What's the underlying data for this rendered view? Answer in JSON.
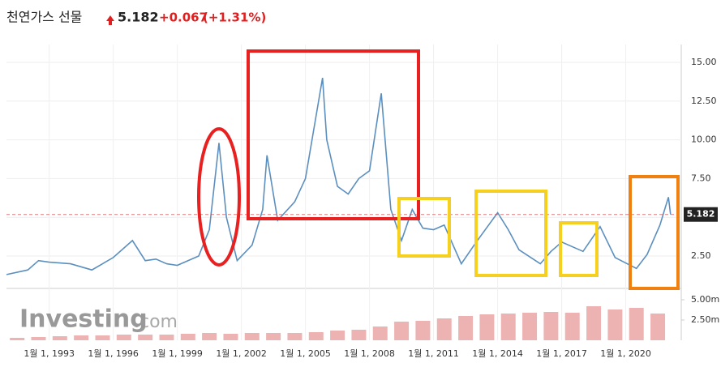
{
  "chart_data": {
    "type": "line",
    "title": "천연가스 선물",
    "last_price": 5.182,
    "change": {
      "value": 0.067,
      "label": "+0.067"
    },
    "change_percent": {
      "value": 1.31,
      "label": "(+1.31%)"
    },
    "watermark": {
      "brand": "Investing",
      "suffix": ".com"
    },
    "xlim": [
      1991,
      2022.6
    ],
    "xticks": [
      {
        "value": 1993,
        "label": "1월 1, 1993"
      },
      {
        "value": 1996,
        "label": "1월 1, 1996"
      },
      {
        "value": 1999,
        "label": "1월 1, 1999"
      },
      {
        "value": 2002,
        "label": "1월 1, 2002"
      },
      {
        "value": 2005,
        "label": "1월 1, 2005"
      },
      {
        "value": 2008,
        "label": "1월 1, 2008"
      },
      {
        "value": 2011,
        "label": "1월 1, 2011"
      },
      {
        "value": 2014,
        "label": "1월 1, 2014"
      },
      {
        "value": 2017,
        "label": "1월 1, 2017"
      },
      {
        "value": 2020,
        "label": "1월 1, 2020"
      }
    ],
    "ylim": [
      0.46,
      16.15
    ],
    "yticks": [
      {
        "value": 2.5,
        "label": "2.50"
      },
      {
        "value": 5,
        "label": "5.00"
      },
      {
        "value": 7.5,
        "label": "7.50"
      },
      {
        "value": 10,
        "label": "10.00"
      },
      {
        "value": 12.5,
        "label": "12.50"
      },
      {
        "value": 15,
        "label": "15.00"
      }
    ],
    "grid": true,
    "series": [
      {
        "color": "#5b8fbf",
        "x": [
          1991.0,
          1992.0,
          1992.5,
          1993.0,
          1994.0,
          1995.0,
          1996.0,
          1996.9,
          1997.5,
          1998.0,
          1998.5,
          1999.0,
          2000.0,
          2000.5,
          2000.95,
          2001.3,
          2001.8,
          2002.5,
          2003.0,
          2003.2,
          2003.7,
          2004.5,
          2005.0,
          2005.8,
          2006.0,
          2006.5,
          2007.0,
          2007.5,
          2008.0,
          2008.55,
          2009.0,
          2009.5,
          2010.0,
          2010.5,
          2011.0,
          2011.5,
          2012.3,
          2013.0,
          2014.0,
          2014.5,
          2015.0,
          2016.0,
          2016.5,
          2017.0,
          2018.0,
          2018.8,
          2019.5,
          2020.5,
          2021.0,
          2021.6,
          2022.0,
          2022.1
        ],
        "values": [
          1.3,
          1.6,
          2.2,
          2.1,
          2.0,
          1.6,
          2.4,
          3.5,
          2.2,
          2.3,
          2.0,
          1.9,
          2.5,
          4.2,
          9.8,
          5.0,
          2.2,
          3.2,
          5.5,
          9.0,
          4.8,
          6.0,
          7.5,
          14.0,
          10.0,
          7.0,
          6.5,
          7.5,
          8.0,
          13.0,
          5.5,
          3.5,
          5.5,
          4.3,
          4.2,
          4.5,
          2.0,
          3.4,
          5.3,
          4.2,
          2.9,
          2.0,
          2.8,
          3.4,
          2.8,
          4.4,
          2.4,
          1.7,
          2.6,
          4.5,
          6.3,
          5.182
        ]
      }
    ],
    "y2lim": [
      0,
      6000000
    ],
    "y2ticks": [
      {
        "value": 2500000,
        "label": "2.50m"
      },
      {
        "value": 5000000,
        "label": "5.00m"
      }
    ],
    "volume": {
      "axis": "y2",
      "color": "#e8a0a0",
      "x": [
        1991.5,
        1992.5,
        1993.5,
        1994.5,
        1995.5,
        1996.5,
        1997.5,
        1998.5,
        1999.5,
        2000.5,
        2001.5,
        2002.5,
        2003.5,
        2004.5,
        2005.5,
        2006.5,
        2007.5,
        2008.5,
        2009.5,
        2010.5,
        2011.5,
        2012.5,
        2013.5,
        2014.5,
        2015.5,
        2016.5,
        2017.5,
        2018.5,
        2019.5,
        2020.5,
        2021.5
      ],
      "values": [
        300000,
        400000,
        500000,
        600000,
        600000,
        700000,
        700000,
        700000,
        800000,
        900000,
        800000,
        900000,
        900000,
        900000,
        1000000,
        1200000,
        1300000,
        1700000,
        2300000,
        2400000,
        2700000,
        3000000,
        3200000,
        3300000,
        3400000,
        3500000,
        3400000,
        4200000,
        3800000,
        4000000,
        3300000
      ]
    }
  }
}
